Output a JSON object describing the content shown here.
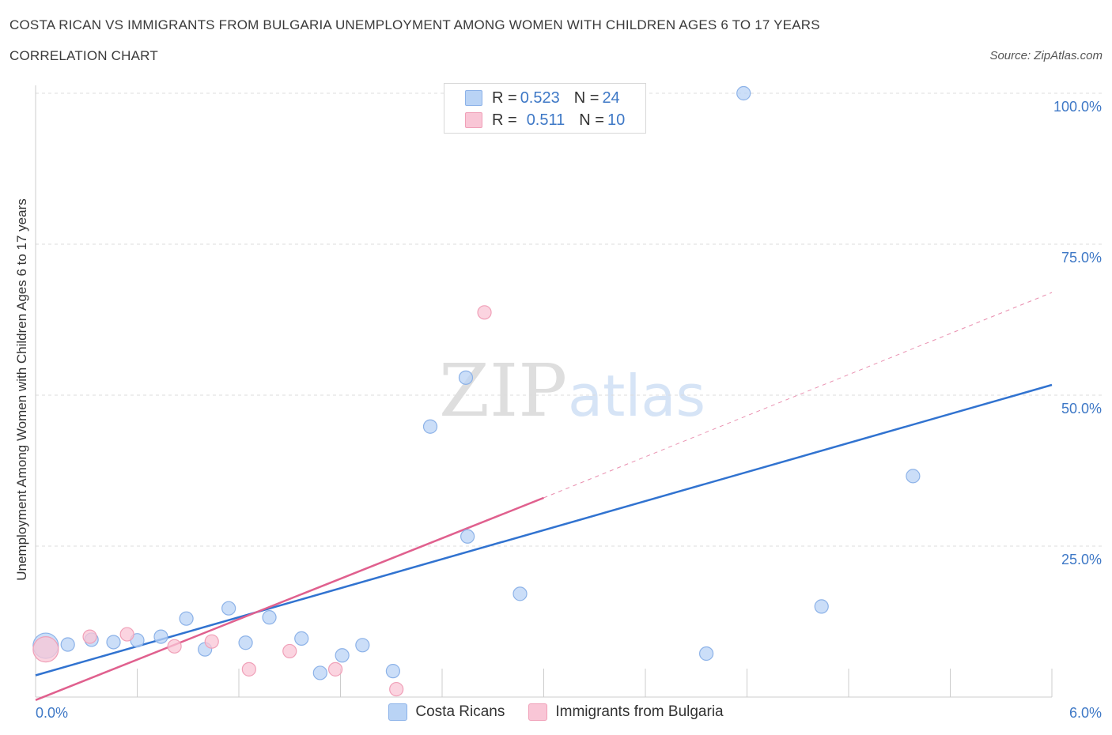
{
  "header": {
    "title": "COSTA RICAN VS IMMIGRANTS FROM BULGARIA UNEMPLOYMENT AMONG WOMEN WITH CHILDREN AGES 6 TO 17 YEARS",
    "subtitle": "CORRELATION CHART",
    "source": "Source: ZipAtlas.com"
  },
  "legend_top": {
    "row1": {
      "r_label": "R = ",
      "r_value": "0.523",
      "n_label": "N = ",
      "n_value": "24"
    },
    "row2": {
      "r_label": "R = ",
      "r_value": "0.511",
      "n_label": "N = ",
      "n_value": "10"
    }
  },
  "legend_bottom": {
    "series1": "Costa Ricans",
    "series2": "Immigrants from Bulgaria"
  },
  "watermark": {
    "zip": "ZIP",
    "atlas": "atlas"
  },
  "colors": {
    "blue_fill": "#b9d3f5",
    "blue_stroke": "#8cb2e8",
    "blue_line": "#3173d0",
    "pink_fill": "#f9c6d6",
    "pink_stroke": "#f0a0b8",
    "pink_line": "#e0608e",
    "tick_label": "#3e78c6"
  },
  "chart_data": {
    "type": "scatter",
    "title": "COSTA RICAN VS IMMIGRANTS FROM BULGARIA UNEMPLOYMENT AMONG WOMEN WITH CHILDREN AGES 6 TO 17 YEARS",
    "xlabel": "",
    "ylabel": "Unemployment Among Women with Children Ages 6 to 17 years",
    "xlim": [
      0,
      6
    ],
    "ylim": [
      0,
      100
    ],
    "x_tick_labels": [
      "0.0%",
      "6.0%"
    ],
    "y_tick_labels": [
      "100.0%",
      "75.0%",
      "50.0%",
      "25.0%"
    ],
    "y_ticks": [
      100,
      75,
      50,
      25
    ],
    "grid": true,
    "legend_placement": "top-center",
    "series": [
      {
        "name": "Costa Ricans",
        "color": "#b9d3f5",
        "points": [
          {
            "x": 0.06,
            "y": 8.5,
            "big": true
          },
          {
            "x": 0.19,
            "y": 8.7
          },
          {
            "x": 0.33,
            "y": 9.5
          },
          {
            "x": 0.46,
            "y": 9.1
          },
          {
            "x": 0.6,
            "y": 9.4
          },
          {
            "x": 0.74,
            "y": 10.0
          },
          {
            "x": 0.89,
            "y": 13.0
          },
          {
            "x": 1.0,
            "y": 7.9
          },
          {
            "x": 1.14,
            "y": 14.7
          },
          {
            "x": 1.24,
            "y": 9.0
          },
          {
            "x": 1.38,
            "y": 13.2
          },
          {
            "x": 1.57,
            "y": 9.7
          },
          {
            "x": 1.68,
            "y": 4.0
          },
          {
            "x": 1.81,
            "y": 6.9
          },
          {
            "x": 1.93,
            "y": 8.6
          },
          {
            "x": 2.11,
            "y": 4.3
          },
          {
            "x": 2.33,
            "y": 44.8
          },
          {
            "x": 2.54,
            "y": 52.9
          },
          {
            "x": 2.55,
            "y": 26.6
          },
          {
            "x": 2.86,
            "y": 17.1
          },
          {
            "x": 3.96,
            "y": 7.2
          },
          {
            "x": 4.18,
            "y": 100.0
          },
          {
            "x": 4.64,
            "y": 15.0
          },
          {
            "x": 5.18,
            "y": 36.6
          }
        ],
        "trendline": {
          "x": [
            0,
            6
          ],
          "y": [
            3.6,
            51.7
          ]
        }
      },
      {
        "name": "Immigrants from Bulgaria",
        "color": "#f9c6d6",
        "points": [
          {
            "x": 0.06,
            "y": 7.9,
            "big": true
          },
          {
            "x": 0.32,
            "y": 10.0
          },
          {
            "x": 0.54,
            "y": 10.4
          },
          {
            "x": 0.82,
            "y": 8.4
          },
          {
            "x": 1.04,
            "y": 9.2
          },
          {
            "x": 1.26,
            "y": 4.6
          },
          {
            "x": 1.5,
            "y": 7.6
          },
          {
            "x": 1.77,
            "y": 4.6
          },
          {
            "x": 2.13,
            "y": 1.3
          },
          {
            "x": 2.65,
            "y": 63.7
          }
        ],
        "trendline": {
          "x": [
            0,
            3.0
          ],
          "y": [
            -0.5,
            33.0
          ]
        },
        "trendline_extension": {
          "x": [
            3.0,
            6.0
          ],
          "y": [
            33.0,
            67.0
          ]
        }
      }
    ]
  }
}
